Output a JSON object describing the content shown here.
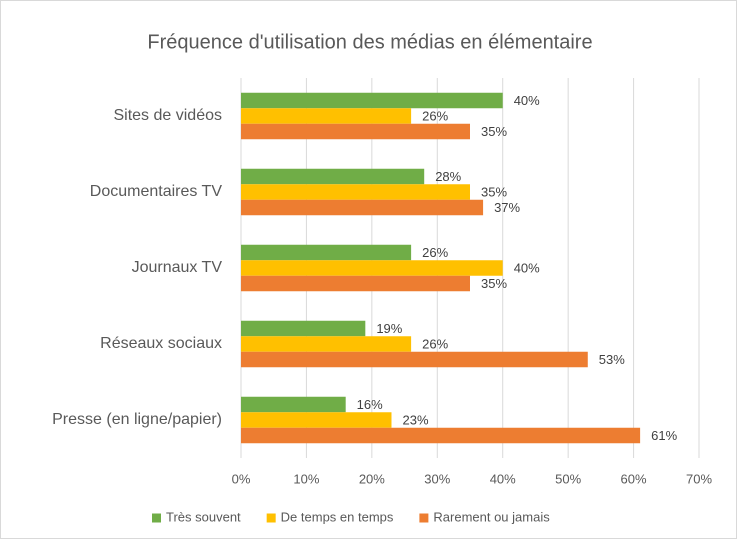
{
  "chart_data": {
    "type": "hbar",
    "title": "Fréquence d'utilisation des médias en élémentaire",
    "categories": [
      "Sites de vidéos",
      "Documentaires TV",
      "Journaux TV",
      "Réseaux sociaux",
      "Presse (en ligne/papier)"
    ],
    "series": [
      {
        "name": "Très souvent",
        "color": "#70ad47",
        "values": [
          40,
          28,
          26,
          19,
          16
        ],
        "value_labels": [
          "40%",
          "28%",
          "26%",
          "19%",
          "16%"
        ]
      },
      {
        "name": "De temps en temps",
        "color": "#ffc000",
        "values": [
          26,
          35,
          40,
          26,
          23
        ],
        "value_labels": [
          "26%",
          "35%",
          "40%",
          "26%",
          "23%"
        ]
      },
      {
        "name": "Rarement ou jamais",
        "color": "#ed7d31",
        "values": [
          35,
          37,
          35,
          53,
          61
        ],
        "value_labels": [
          "35%",
          "37%",
          "35%",
          "53%",
          "61%"
        ]
      }
    ],
    "xlim": [
      0,
      70
    ],
    "xticks": [
      {
        "value": 0,
        "label": "0%"
      },
      {
        "value": 10,
        "label": "10%"
      },
      {
        "value": 20,
        "label": "20%"
      },
      {
        "value": 30,
        "label": "30%"
      },
      {
        "value": 40,
        "label": "40%"
      },
      {
        "value": 50,
        "label": "50%"
      },
      {
        "value": 60,
        "label": "60%"
      },
      {
        "value": 70,
        "label": "70%"
      }
    ],
    "grid": true,
    "legend": "bottom"
  }
}
